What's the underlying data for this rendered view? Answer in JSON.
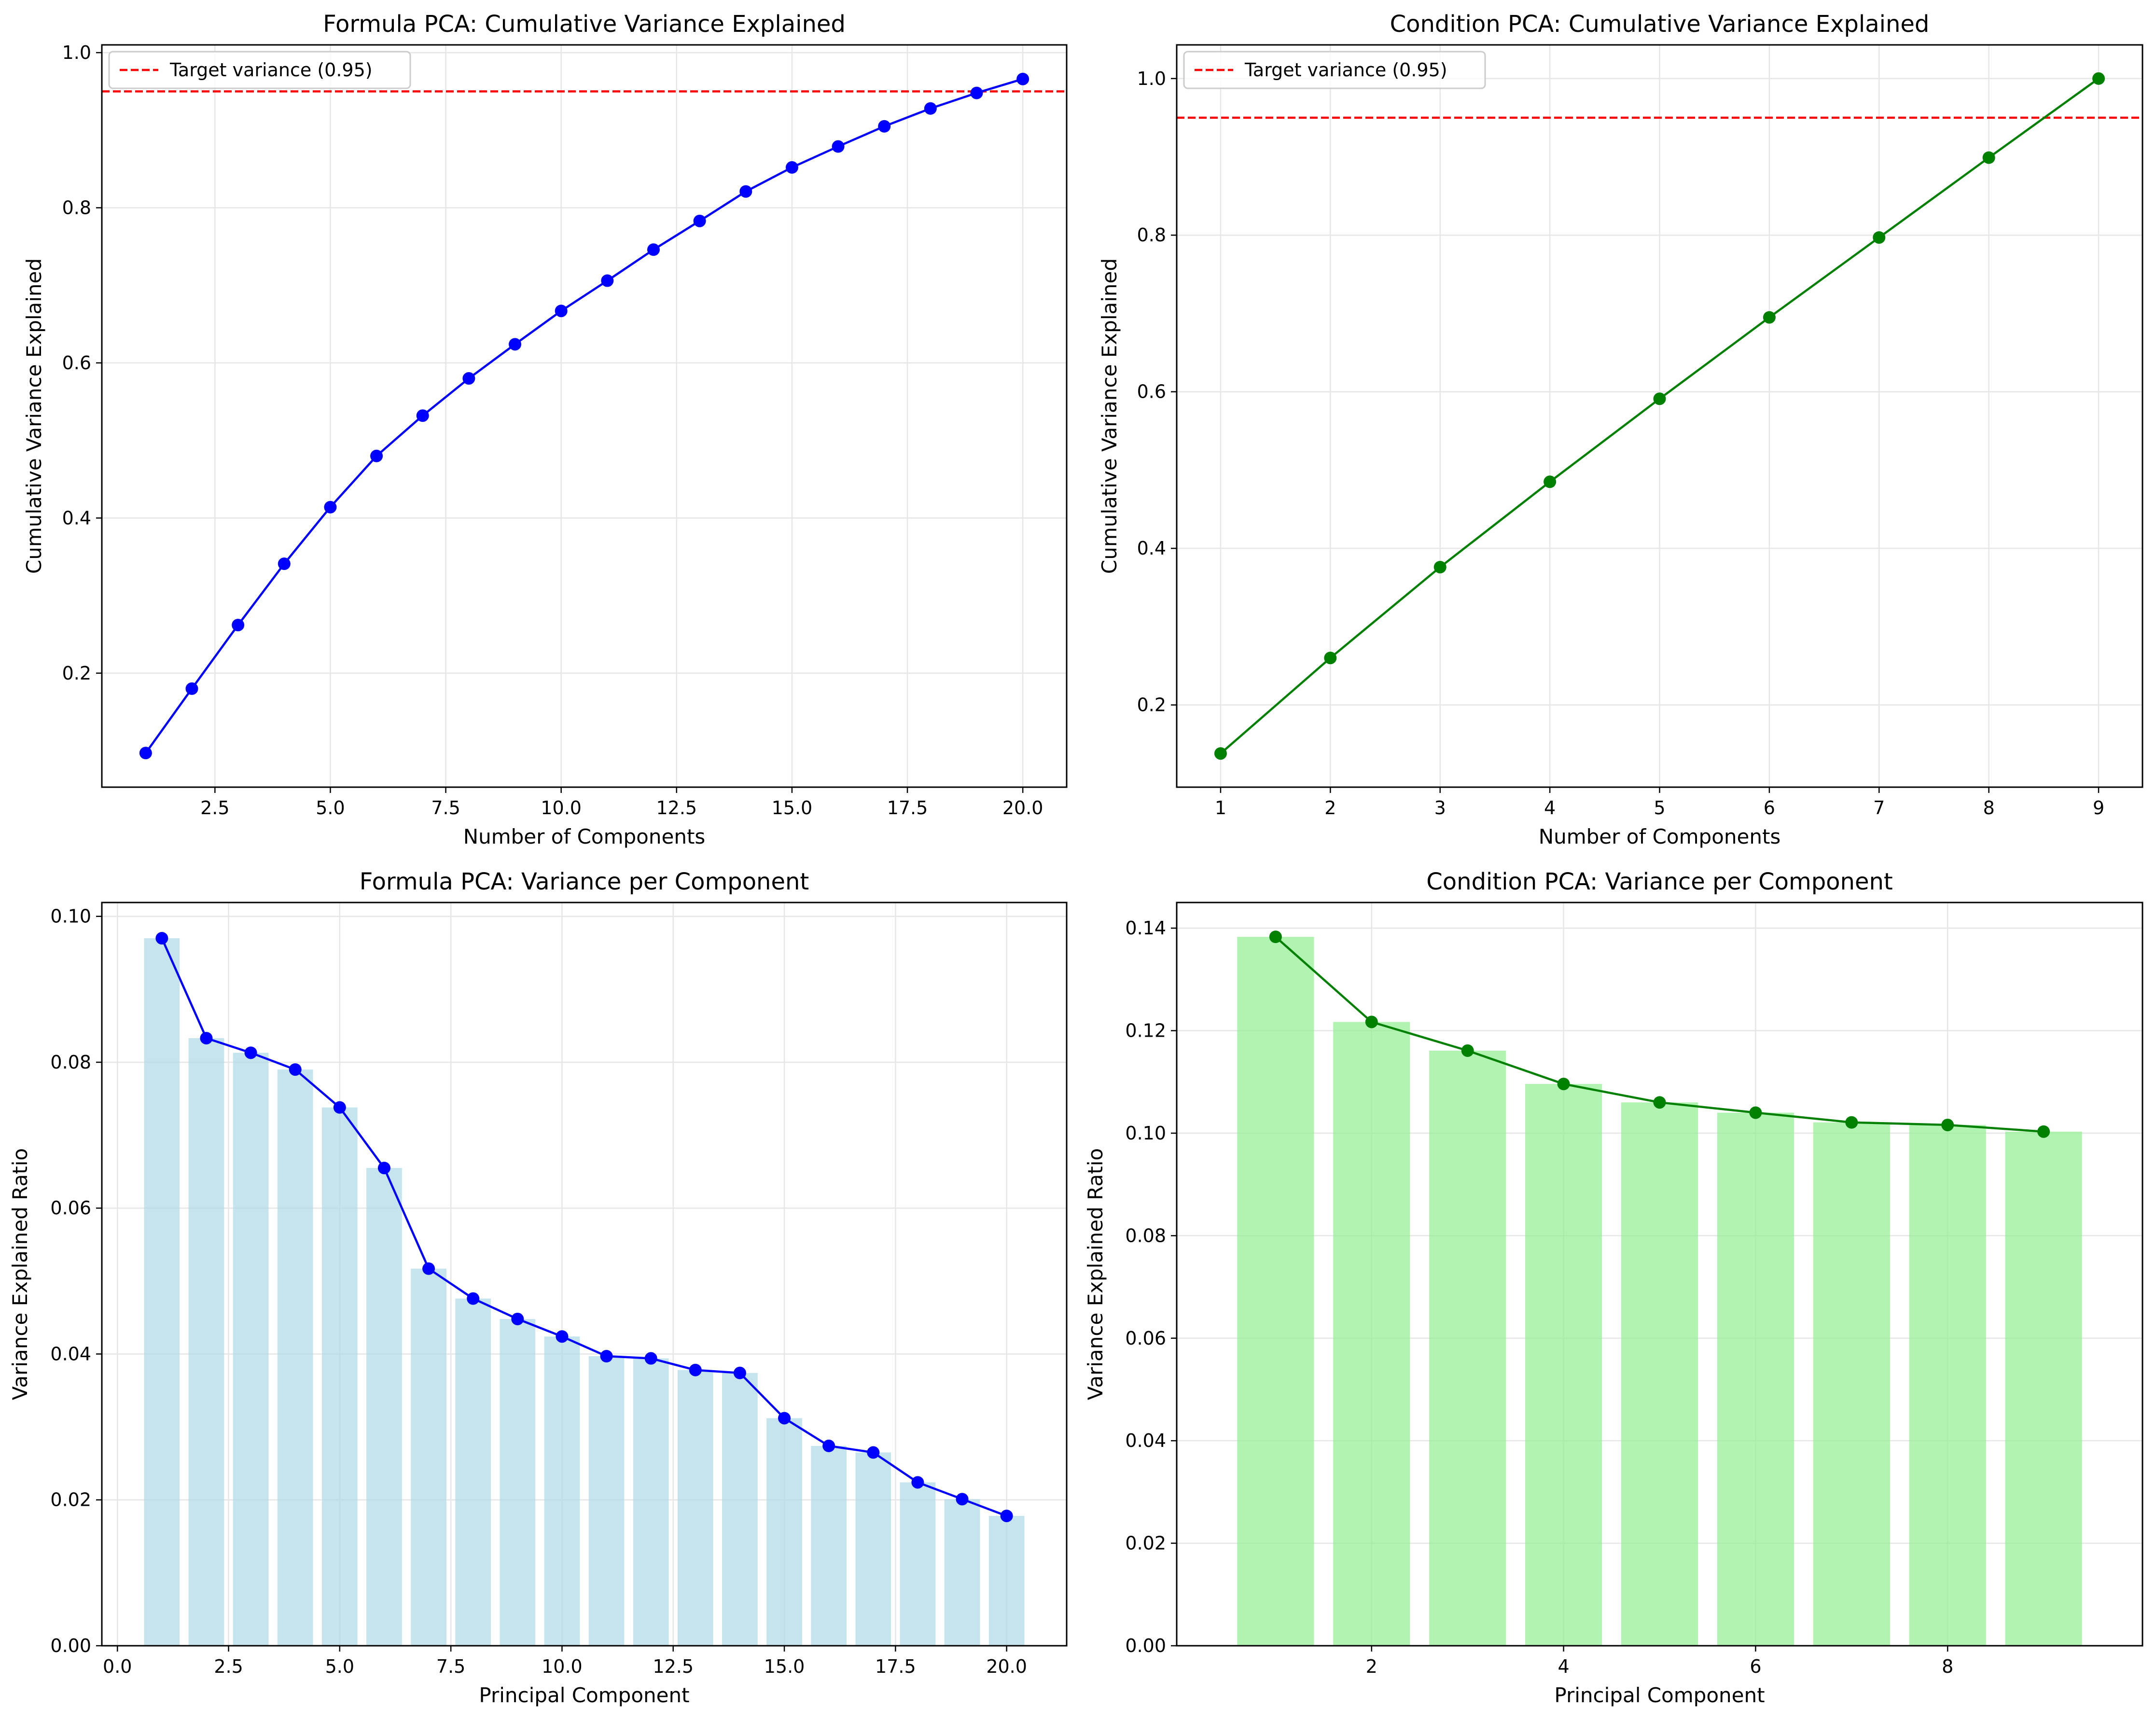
{
  "colors": {
    "formula_line": "#0000ff",
    "condition_line": "#008000",
    "target_line": "#ff0000",
    "formula_bar": "#add8e6",
    "condition_bar": "#90ee90",
    "grid": "#e6e6e6"
  },
  "chart_data": [
    {
      "id": "formula_cumulative",
      "type": "line",
      "title": "Formula PCA: Cumulative Variance Explained",
      "xlabel": "Number of Components",
      "ylabel": "Cumulative Variance Explained",
      "xlim": [
        0.05,
        20.95
      ],
      "ylim": [
        0.053,
        1.01
      ],
      "xticks": [
        2.5,
        5.0,
        7.5,
        10.0,
        12.5,
        15.0,
        17.5,
        20.0
      ],
      "xtick_labels": [
        "2.5",
        "5.0",
        "7.5",
        "10.0",
        "12.5",
        "15.0",
        "17.5",
        "20.0"
      ],
      "yticks": [
        0.2,
        0.4,
        0.6,
        0.8,
        1.0
      ],
      "ytick_labels": [
        "0.2",
        "0.4",
        "0.6",
        "0.8",
        "1.0"
      ],
      "grid": true,
      "legend_position": "upper-left",
      "x": [
        1,
        2,
        3,
        4,
        5,
        6,
        7,
        8,
        9,
        10,
        11,
        12,
        13,
        14,
        15,
        16,
        17,
        18,
        19,
        20
      ],
      "series": [
        {
          "values": [
            0.097,
            0.18,
            0.262,
            0.341,
            0.414,
            0.48,
            0.532,
            0.58,
            0.624,
            0.667,
            0.706,
            0.746,
            0.783,
            0.821,
            0.852,
            0.879,
            0.905,
            0.928,
            0.948,
            0.966
          ]
        }
      ],
      "reference_line": {
        "y": 0.95,
        "label": "Target variance (0.95)"
      }
    },
    {
      "id": "condition_cumulative",
      "type": "line",
      "title": "Condition PCA: Cumulative Variance Explained",
      "xlabel": "Number of Components",
      "ylabel": "Cumulative Variance Explained",
      "xlim": [
        0.6,
        9.4
      ],
      "ylim": [
        0.095,
        1.043
      ],
      "xticks": [
        1,
        2,
        3,
        4,
        5,
        6,
        7,
        8,
        9
      ],
      "xtick_labels": [
        "1",
        "2",
        "3",
        "4",
        "5",
        "6",
        "7",
        "8",
        "9"
      ],
      "yticks": [
        0.2,
        0.4,
        0.6,
        0.8,
        1.0
      ],
      "ytick_labels": [
        "0.2",
        "0.4",
        "0.6",
        "0.8",
        "1.0"
      ],
      "grid": true,
      "legend_position": "upper-left",
      "x": [
        1,
        2,
        3,
        4,
        5,
        6,
        7,
        8,
        9
      ],
      "series": [
        {
          "values": [
            0.138,
            0.26,
            0.376,
            0.485,
            0.591,
            0.695,
            0.797,
            0.899,
            1.0
          ]
        }
      ],
      "reference_line": {
        "y": 0.95,
        "label": "Target variance (0.95)"
      }
    },
    {
      "id": "formula_per_component",
      "type": "bar",
      "title": "Formula PCA: Variance per Component",
      "xlabel": "Principal Component",
      "ylabel": "Variance Explained Ratio",
      "xlim": [
        -0.35,
        21.35
      ],
      "ylim": [
        0,
        0.1019
      ],
      "xticks": [
        0.0,
        2.5,
        5.0,
        7.5,
        10.0,
        12.5,
        15.0,
        17.5,
        20.0
      ],
      "xtick_labels": [
        "0.0",
        "2.5",
        "5.0",
        "7.5",
        "10.0",
        "12.5",
        "15.0",
        "17.5",
        "20.0"
      ],
      "yticks": [
        0.0,
        0.02,
        0.04,
        0.06,
        0.08,
        0.1
      ],
      "ytick_labels": [
        "0.00",
        "0.02",
        "0.04",
        "0.06",
        "0.08",
        "0.10"
      ],
      "grid": true,
      "x": [
        1,
        2,
        3,
        4,
        5,
        6,
        7,
        8,
        9,
        10,
        11,
        12,
        13,
        14,
        15,
        16,
        17,
        18,
        19,
        20
      ],
      "values": [
        0.097,
        0.0833,
        0.0813,
        0.079,
        0.0738,
        0.0655,
        0.0517,
        0.0476,
        0.0448,
        0.0424,
        0.0397,
        0.0394,
        0.0378,
        0.0374,
        0.0312,
        0.0274,
        0.0265,
        0.0224,
        0.0201,
        0.0178
      ]
    },
    {
      "id": "condition_per_component",
      "type": "bar",
      "title": "Condition PCA: Variance per Component",
      "xlabel": "Principal Component",
      "ylabel": "Variance Explained Ratio",
      "xlim": [
        -0.03,
        10.03
      ],
      "ylim": [
        0,
        0.145
      ],
      "xticks": [
        2,
        4,
        6,
        8
      ],
      "xtick_labels": [
        "2",
        "4",
        "6",
        "8"
      ],
      "yticks": [
        0.0,
        0.02,
        0.04,
        0.06,
        0.08,
        0.1,
        0.12,
        0.14
      ],
      "ytick_labels": [
        "0.00",
        "0.02",
        "0.04",
        "0.06",
        "0.08",
        "0.10",
        "0.12",
        "0.14"
      ],
      "grid": true,
      "x": [
        1,
        2,
        3,
        4,
        5,
        6,
        7,
        8,
        9
      ],
      "values": [
        0.1383,
        0.1217,
        0.1161,
        0.1096,
        0.106,
        0.104,
        0.1021,
        0.1016,
        0.1003
      ]
    }
  ]
}
